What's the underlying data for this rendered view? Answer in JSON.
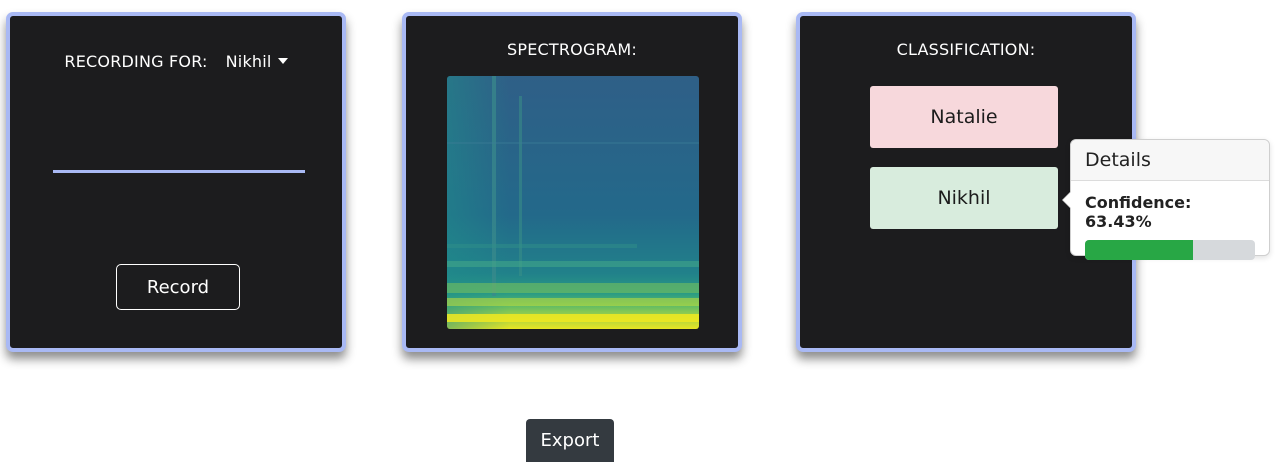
{
  "recording": {
    "label": "RECORDING FOR:",
    "selected_user": "Nikhil",
    "record_label": "Record"
  },
  "spectrogram": {
    "title": "SPECTROGRAM:"
  },
  "classification": {
    "title": "CLASSIFICATION:",
    "options": [
      "Natalie",
      "Nikhil"
    ]
  },
  "details": {
    "title": "Details",
    "confidence_text": "Confidence: 63.43%",
    "confidence_value": 0.6343
  },
  "export_label": "Export",
  "colors": {
    "panel_border": "#a9b9f4",
    "panel_bg": "#1c1c1e",
    "natalie_bg": "#f7d8dc",
    "nikhil_bg": "#d8ecdd",
    "progress": "#28a745"
  }
}
